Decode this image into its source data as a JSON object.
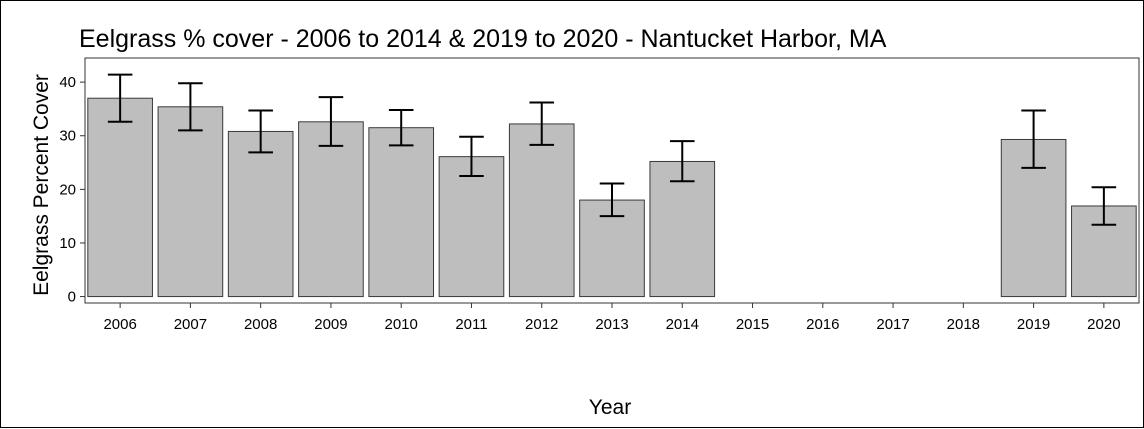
{
  "chart_data": {
    "type": "bar",
    "title": "Eelgrass % cover - 2006 to 2014 & 2019 to 2020 - Nantucket Harbor, MA",
    "xlabel": "Year",
    "ylabel": "Eelgrass Percent Cover",
    "ylim": [
      -1.2,
      44.5
    ],
    "yticks": [
      0,
      10,
      20,
      30,
      40
    ],
    "grid": false,
    "legend": "none",
    "categories": [
      "2006",
      "2007",
      "2008",
      "2009",
      "2010",
      "2011",
      "2012",
      "2013",
      "2014",
      "2015",
      "2016",
      "2017",
      "2018",
      "2019",
      "2020"
    ],
    "values": [
      37.0,
      35.4,
      30.8,
      32.6,
      31.5,
      26.1,
      32.2,
      18.0,
      25.2,
      null,
      null,
      null,
      null,
      29.3,
      16.9
    ],
    "error_low": [
      32.6,
      31.0,
      26.9,
      28.1,
      28.2,
      22.5,
      28.3,
      15.0,
      21.5,
      null,
      null,
      null,
      null,
      24.0,
      13.4
    ],
    "error_high": [
      41.4,
      39.8,
      34.7,
      37.2,
      34.8,
      29.8,
      36.2,
      21.1,
      29.0,
      null,
      null,
      null,
      null,
      34.7,
      20.4
    ],
    "bar_color": "#bebebe",
    "bar_edge_color": "#3a3a3a",
    "error_color": "#000000"
  }
}
